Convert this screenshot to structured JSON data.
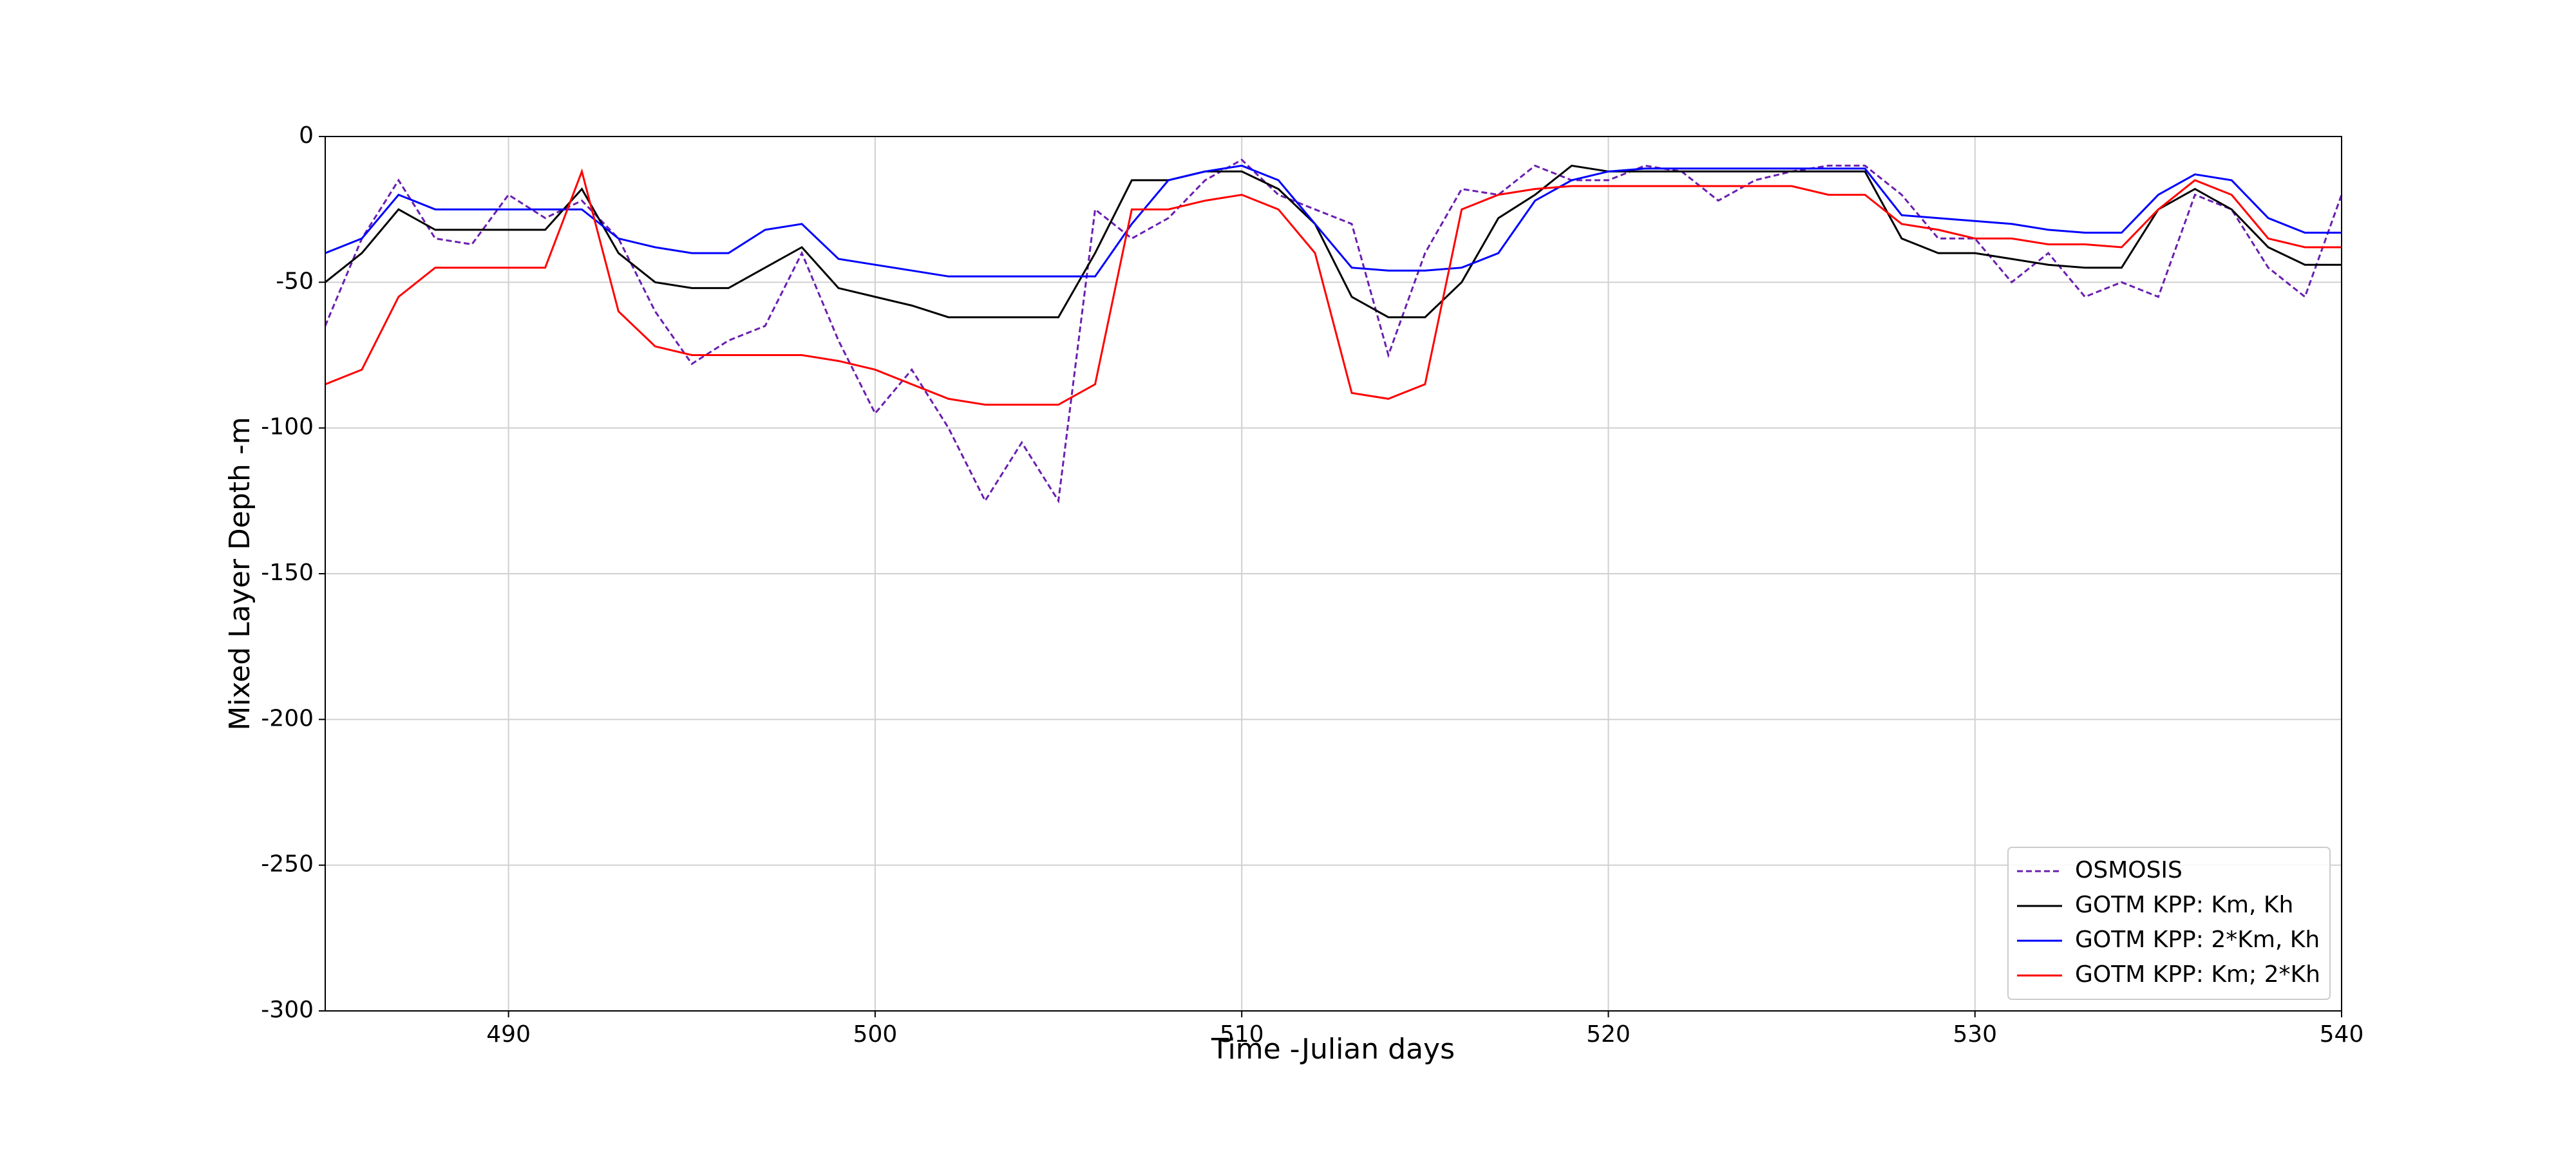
{
  "chart_data": {
    "type": "line",
    "xlabel": "Time -Julian days",
    "ylabel": "Mixed Layer Depth -m",
    "x": [
      485,
      486,
      487,
      488,
      489,
      490,
      491,
      492,
      493,
      494,
      495,
      496,
      497,
      498,
      499,
      500,
      501,
      502,
      503,
      504,
      505,
      506,
      507,
      508,
      509,
      510,
      511,
      512,
      513,
      514,
      515,
      516,
      517,
      518,
      519,
      520,
      521,
      522,
      523,
      524,
      525,
      526,
      527,
      528,
      529,
      530,
      531,
      532,
      533,
      534,
      535,
      536,
      537,
      538,
      539,
      540
    ],
    "series": [
      {
        "name": "OSMOSIS",
        "color": "#6a1fb0",
        "linestyle": "dashed",
        "values": [
          -65,
          -35,
          -15,
          -35,
          -37,
          -20,
          -28,
          -22,
          -35,
          -60,
          -78,
          -70,
          -65,
          -40,
          -70,
          -95,
          -80,
          -100,
          -125,
          -105,
          -125,
          -25,
          -35,
          -28,
          -15,
          -8,
          -20,
          -25,
          -30,
          -75,
          -40,
          -18,
          -20,
          -10,
          -15,
          -15,
          -10,
          -12,
          -22,
          -15,
          -12,
          -10,
          -10,
          -20,
          -35,
          -35,
          -50,
          -40,
          -55,
          -50,
          -55,
          -20,
          -25,
          -45,
          -55,
          -20
        ]
      },
      {
        "name": "GOTM KPP: Km, Kh",
        "color": "#000000",
        "linestyle": "solid",
        "values": [
          -50,
          -40,
          -25,
          -32,
          -32,
          -32,
          -32,
          -18,
          -40,
          -50,
          -52,
          -52,
          -45,
          -38,
          -52,
          -55,
          -58,
          -62,
          -62,
          -62,
          -62,
          -40,
          -15,
          -15,
          -12,
          -12,
          -18,
          -30,
          -55,
          -62,
          -62,
          -50,
          -28,
          -20,
          -10,
          -12,
          -12,
          -12,
          -12,
          -12,
          -12,
          -12,
          -12,
          -35,
          -40,
          -40,
          -42,
          -44,
          -45,
          -45,
          -25,
          -18,
          -25,
          -38,
          -44,
          -44
        ]
      },
      {
        "name": "GOTM KPP: 2*Km, Kh",
        "color": "#0000ff",
        "linestyle": "solid",
        "values": [
          -40,
          -35,
          -20,
          -25,
          -25,
          -25,
          -25,
          -25,
          -35,
          -38,
          -40,
          -40,
          -32,
          -30,
          -42,
          -44,
          -46,
          -48,
          -48,
          -48,
          -48,
          -48,
          -30,
          -15,
          -12,
          -10,
          -15,
          -30,
          -45,
          -46,
          -46,
          -45,
          -40,
          -22,
          -15,
          -12,
          -11,
          -11,
          -11,
          -11,
          -11,
          -11,
          -11,
          -27,
          -28,
          -29,
          -30,
          -32,
          -33,
          -33,
          -20,
          -13,
          -15,
          -28,
          -33,
          -33
        ]
      },
      {
        "name": "GOTM KPP: Km; 2*Kh",
        "color": "#ff0000",
        "linestyle": "solid",
        "values": [
          -85,
          -80,
          -55,
          -45,
          -45,
          -45,
          -45,
          -12,
          -60,
          -72,
          -75,
          -75,
          -75,
          -75,
          -77,
          -80,
          -85,
          -90,
          -92,
          -92,
          -92,
          -85,
          -25,
          -25,
          -22,
          -20,
          -25,
          -40,
          -88,
          -90,
          -85,
          -25,
          -20,
          -18,
          -17,
          -17,
          -17,
          -17,
          -17,
          -17,
          -17,
          -20,
          -20,
          -30,
          -32,
          -35,
          -35,
          -37,
          -37,
          -38,
          -25,
          -15,
          -20,
          -35,
          -38,
          -38
        ]
      }
    ],
    "xlim": [
      485,
      540
    ],
    "ylim": [
      -300,
      0
    ],
    "xticks": [
      490,
      500,
      510,
      520,
      530,
      540
    ],
    "yticks": [
      -300,
      -250,
      -200,
      -150,
      -100,
      -50,
      0
    ],
    "grid": true,
    "legend": "lower right"
  }
}
